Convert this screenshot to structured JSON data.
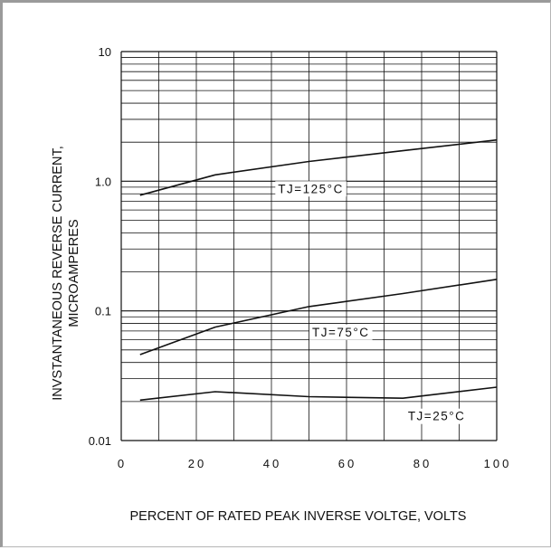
{
  "chart_data": {
    "type": "line",
    "title": "",
    "xlabel": "PERCENT OF RATED PEAK INVERSE VOLTGE, VOLTS",
    "ylabel_line1": "INVSTANTANEOUS REVERSE CURRENT,",
    "ylabel_line2": "MICROAMPERES",
    "xlim": [
      0,
      100
    ],
    "ylim": [
      0.01,
      10
    ],
    "yscale": "log",
    "grid": true,
    "xticks": [
      0,
      20,
      40,
      60,
      80,
      100
    ],
    "xtick_labels": [
      "0",
      "20",
      "40",
      "60",
      "80",
      "100"
    ],
    "ytick_values": [
      10,
      1.0,
      0.1,
      0.01
    ],
    "ytick_labels": [
      "10",
      "1.0",
      "0.1",
      "0.01"
    ],
    "series": [
      {
        "name": "TJ=125°C",
        "x": [
          5,
          25,
          50,
          75,
          100
        ],
        "y": [
          0.78,
          1.12,
          1.42,
          1.72,
          2.08
        ]
      },
      {
        "name": "TJ=75°C",
        "x": [
          5,
          25,
          50,
          75,
          100
        ],
        "y": [
          0.046,
          0.075,
          0.108,
          0.136,
          0.175
        ]
      },
      {
        "name": "TJ=25°C",
        "x": [
          5,
          25,
          50,
          75,
          100
        ],
        "y": [
          0.0205,
          0.0238,
          0.0218,
          0.0212,
          0.0258
        ]
      }
    ]
  }
}
